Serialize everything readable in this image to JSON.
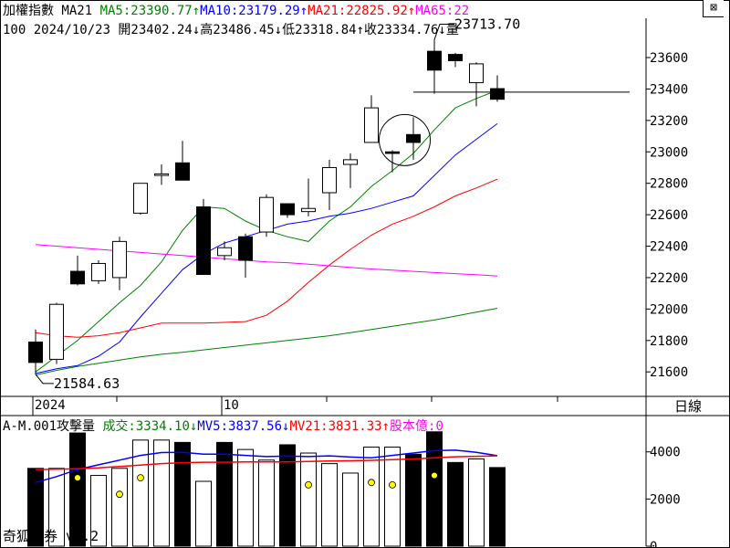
{
  "header": {
    "segments": [
      {
        "text": "加權指數 MA21 ",
        "color": "#000000"
      },
      {
        "text": "MA5:23390.77↑",
        "color": "#008000"
      },
      {
        "text": "MA10:23179.29↑",
        "color": "#0000ff"
      },
      {
        "text": "MA21:22825.92↑",
        "color": "#ff0000"
      },
      {
        "text": "MA65:22",
        "color": "#ff00ff"
      }
    ],
    "ohlc_line": "100 2024/10/23 開23402.24↓高23486.45↓低23318.84↑收23334.76↓量"
  },
  "close_icon": "⊠",
  "panel_label": "日線",
  "brand": "奇狐勝券 v5.2",
  "annotations": {
    "high_label": "23713.70",
    "low_label": "21584.63"
  },
  "x_axis": {
    "labels": [
      {
        "text": "2024",
        "index": 0
      },
      {
        "text": "10",
        "index": 9
      }
    ]
  },
  "volume_header": {
    "segments": [
      {
        "text": "A-M.001攻擊量 ",
        "color": "#000000"
      },
      {
        "text": "成交:3334.10↓",
        "color": "#008000"
      },
      {
        "text": "MV5:3837.56↓",
        "color": "#0000ff"
      },
      {
        "text": "MV21:3831.33↑",
        "color": "#ff0000"
      },
      {
        "text": "股本億:0",
        "color": "#ff00ff"
      }
    ]
  },
  "chart_data": [
    {
      "type": "candlestick",
      "title": "加權指數",
      "ylim": [
        21450,
        23850
      ],
      "y_ticks": [
        21600,
        21800,
        22000,
        22200,
        22400,
        22600,
        22800,
        23000,
        23200,
        23400,
        23600
      ],
      "candles": [
        {
          "o": 21790,
          "h": 21870,
          "l": 21584.63,
          "c": 21660
        },
        {
          "o": 21680,
          "h": 22040,
          "l": 21650,
          "c": 22030
        },
        {
          "o": 22240,
          "h": 22340,
          "l": 22150,
          "c": 22160
        },
        {
          "o": 22180,
          "h": 22310,
          "l": 22160,
          "c": 22290
        },
        {
          "o": 22200,
          "h": 22460,
          "l": 22120,
          "c": 22430
        },
        {
          "o": 22610,
          "h": 22800,
          "l": 22600,
          "c": 22800
        },
        {
          "o": 22850,
          "h": 22920,
          "l": 22790,
          "c": 22860
        },
        {
          "o": 22930,
          "h": 23070,
          "l": 22820,
          "c": 22820
        },
        {
          "o": 22650,
          "h": 22700,
          "l": 22220,
          "c": 22220
        },
        {
          "o": 22340,
          "h": 22430,
          "l": 22310,
          "c": 22390
        },
        {
          "o": 22460,
          "h": 22480,
          "l": 22200,
          "c": 22310
        },
        {
          "o": 22490,
          "h": 22730,
          "l": 22460,
          "c": 22710
        },
        {
          "o": 22670,
          "h": 22670,
          "l": 22580,
          "c": 22600
        },
        {
          "o": 22620,
          "h": 22830,
          "l": 22590,
          "c": 22640
        },
        {
          "o": 22740,
          "h": 22950,
          "l": 22630,
          "c": 22900
        },
        {
          "o": 22920,
          "h": 22990,
          "l": 22770,
          "c": 22950
        },
        {
          "o": 23060,
          "h": 23360,
          "l": 23060,
          "c": 23280
        },
        {
          "o": 23000,
          "h": 23010,
          "l": 22870,
          "c": 22990
        },
        {
          "o": 23110,
          "h": 23220,
          "l": 22950,
          "c": 23060
        },
        {
          "o": 23640,
          "h": 23713.7,
          "l": 23370,
          "c": 23520
        },
        {
          "o": 23620,
          "h": 23630,
          "l": 23540,
          "c": 23580
        },
        {
          "o": 23440,
          "h": 23570,
          "l": 23290,
          "c": 23560
        },
        {
          "o": 23402.24,
          "h": 23486.45,
          "l": 23318.84,
          "c": 23334.76
        }
      ],
      "series": [
        {
          "name": "MA5",
          "color": "#008000",
          "values": [
            21600,
            21700,
            21800,
            21920,
            22040,
            22150,
            22300,
            22500,
            22650,
            22640,
            22560,
            22500,
            22460,
            22430,
            22560,
            22650,
            22780,
            22880,
            22990,
            23140,
            23280,
            23340,
            23390.77
          ]
        },
        {
          "name": "MA10",
          "color": "#0000ff",
          "values": [
            21590,
            21620,
            21640,
            21700,
            21790,
            21950,
            22100,
            22250,
            22350,
            22420,
            22460,
            22500,
            22540,
            22560,
            22590,
            22610,
            22640,
            22680,
            22720,
            22850,
            22980,
            23080,
            23179.29
          ]
        },
        {
          "name": "MA21",
          "color": "#ff0000",
          "values": [
            21850,
            21830,
            21820,
            21830,
            21850,
            21880,
            21910,
            21910,
            21910,
            21915,
            21920,
            21960,
            22050,
            22170,
            22280,
            22380,
            22470,
            22540,
            22590,
            22650,
            22720,
            22770,
            22825.92
          ]
        },
        {
          "name": "MA65",
          "color": "#ff00ff",
          "values": [
            22410,
            22400,
            22390,
            22380,
            22370,
            22360,
            22350,
            22340,
            22330,
            22320,
            22310,
            22300,
            22295,
            22285,
            22275,
            22265,
            22255,
            22248,
            22240,
            22232,
            22225,
            22218,
            22210
          ]
        },
        {
          "name": "MA130",
          "color": "#008000",
          "values": [
            21580,
            21610,
            21635,
            21655,
            21675,
            21695,
            21712,
            21725,
            21740,
            21755,
            21770,
            21785,
            21800,
            21815,
            21830,
            21850,
            21870,
            21890,
            21910,
            21930,
            21955,
            21980,
            22005
          ]
        }
      ],
      "reference_line": 23380
    },
    {
      "type": "bar",
      "title": "A-M.001攻擊量",
      "ylim": [
        0,
        5500
      ],
      "y_ticks": [
        0,
        2000,
        4000
      ],
      "values": [
        3300,
        3300,
        4800,
        3000,
        3300,
        4500,
        4500,
        4400,
        2750,
        4400,
        4100,
        3650,
        4300,
        3950,
        3500,
        3100,
        4200,
        4200,
        3900,
        4850,
        3550,
        3700,
        3334.1
      ],
      "filled": [
        true,
        false,
        true,
        false,
        false,
        false,
        false,
        true,
        false,
        true,
        false,
        false,
        true,
        false,
        false,
        false,
        false,
        false,
        true,
        true,
        true,
        false,
        true
      ],
      "markers": [
        null,
        null,
        2900,
        null,
        2200,
        2900,
        null,
        null,
        null,
        null,
        null,
        null,
        null,
        2600,
        null,
        null,
        2700,
        2600,
        null,
        3000,
        null,
        null,
        null
      ],
      "series": [
        {
          "name": "MV5",
          "color": "#0000ff",
          "values": [
            2700,
            2950,
            3250,
            3450,
            3650,
            3850,
            3970,
            3980,
            3900,
            3900,
            3850,
            3800,
            3820,
            3800,
            3830,
            3780,
            3750,
            3850,
            3950,
            4050,
            4070,
            3980,
            3837.56
          ]
        },
        {
          "name": "MV21",
          "color": "#ff0000",
          "values": [
            3250,
            3260,
            3280,
            3320,
            3380,
            3440,
            3500,
            3540,
            3560,
            3560,
            3570,
            3570,
            3570,
            3590,
            3610,
            3620,
            3640,
            3670,
            3700,
            3750,
            3790,
            3810,
            3831.33
          ]
        }
      ]
    }
  ]
}
